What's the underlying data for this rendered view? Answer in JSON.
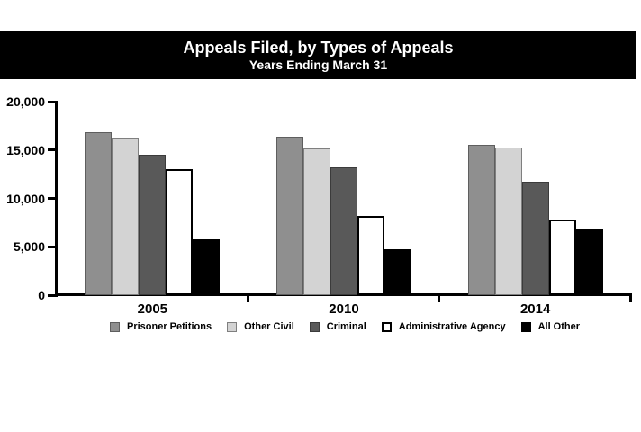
{
  "banner": {
    "title": "Appeals Filed, by Types of Appeals",
    "subtitle": "Years Ending March 31"
  },
  "chart_data": {
    "type": "bar",
    "title": "Appeals Filed, by Types of Appeals",
    "subtitle": "Years Ending March 31",
    "categories": [
      "2005",
      "2010",
      "2014"
    ],
    "series": [
      {
        "name": "Prisoner Petitions",
        "fill": "#8F8F8F",
        "border": "#5E5E5E",
        "border_width": 1,
        "values": [
          16800,
          16400,
          15500
        ]
      },
      {
        "name": "Other Civil",
        "fill": "#D3D3D3",
        "border": "#7F7F7F",
        "border_width": 1,
        "values": [
          16300,
          15200,
          15300
        ]
      },
      {
        "name": "Criminal",
        "fill": "#595959",
        "border": "#3B3B3B",
        "border_width": 1,
        "values": [
          14500,
          13200,
          11700
        ]
      },
      {
        "name": "Administrative Agency",
        "fill": "#FFFFFF",
        "border": "#000000",
        "border_width": 2,
        "values": [
          13000,
          8200,
          7800
        ]
      },
      {
        "name": "All Other",
        "fill": "#000000",
        "border": "#000000",
        "border_width": 1,
        "values": [
          5800,
          4700,
          6900
        ]
      }
    ],
    "xlabel": "",
    "ylabel": "",
    "ylim": [
      0,
      20000
    ],
    "y_ticks": [
      0,
      5000,
      10000,
      15000,
      20000
    ],
    "y_tick_labels": [
      "0",
      "5,000",
      "10,000",
      "15,000",
      "20,000"
    ],
    "grid": false,
    "legend_position": "bottom",
    "axis_color": "#000000",
    "background_color": "#FFFFFF",
    "banner_color": "#000000"
  }
}
